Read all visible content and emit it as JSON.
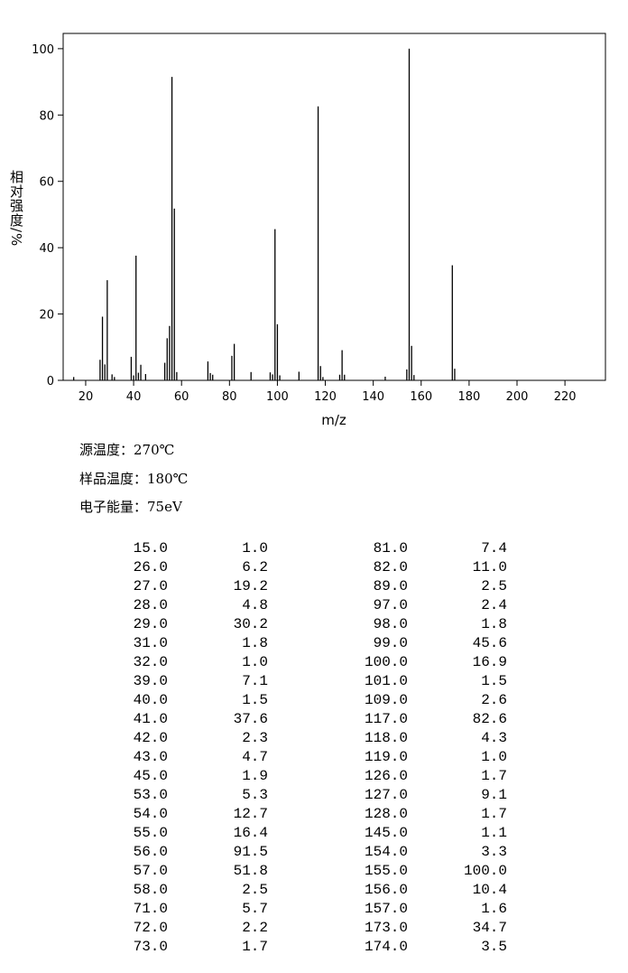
{
  "chart_data": {
    "type": "bar",
    "xlabel": "m/z",
    "ylabel": "相对强度/%",
    "x": [
      15,
      26,
      27,
      28,
      29,
      31,
      32,
      39,
      40,
      41,
      42,
      43,
      45,
      53,
      54,
      55,
      56,
      57,
      58,
      71,
      72,
      73,
      81,
      82,
      89,
      97,
      98,
      99,
      100,
      101,
      109,
      117,
      118,
      119,
      126,
      127,
      128,
      145,
      154,
      155,
      156,
      157,
      173,
      174
    ],
    "values": [
      1.0,
      6.2,
      19.2,
      4.8,
      30.2,
      1.8,
      1.0,
      7.1,
      1.5,
      37.6,
      2.3,
      4.7,
      1.9,
      5.3,
      12.7,
      16.4,
      91.5,
      51.8,
      2.5,
      5.7,
      2.2,
      1.7,
      7.4,
      11.0,
      2.5,
      2.4,
      1.8,
      45.6,
      16.9,
      1.5,
      2.6,
      82.6,
      4.3,
      1.0,
      1.7,
      9.1,
      1.7,
      1.1,
      3.3,
      100,
      10.4,
      1.6,
      34.7,
      3.5
    ],
    "color": "#000000",
    "xlim": [
      10.6,
      236.9
    ],
    "xticks": [
      20,
      40,
      60,
      80,
      100,
      120,
      140,
      160,
      180,
      200,
      220
    ],
    "ylim": [
      0,
      104.6
    ],
    "yticks": [
      0,
      20,
      40,
      60,
      80,
      100
    ]
  },
  "conditions": [
    "源温度：270℃",
    "样品温度：180℃",
    "电子能量：75eV"
  ],
  "table": {
    "rows": [
      [
        "15.0",
        "1.0",
        "81.0",
        "7.4"
      ],
      [
        "26.0",
        "6.2",
        "82.0",
        "11.0"
      ],
      [
        "27.0",
        "19.2",
        "89.0",
        "2.5"
      ],
      [
        "28.0",
        "4.8",
        "97.0",
        "2.4"
      ],
      [
        "29.0",
        "30.2",
        "98.0",
        "1.8"
      ],
      [
        "31.0",
        "1.8",
        "99.0",
        "45.6"
      ],
      [
        "32.0",
        "1.0",
        "100.0",
        "16.9"
      ],
      [
        "39.0",
        "7.1",
        "101.0",
        "1.5"
      ],
      [
        "40.0",
        "1.5",
        "109.0",
        "2.6"
      ],
      [
        "41.0",
        "37.6",
        "117.0",
        "82.6"
      ],
      [
        "42.0",
        "2.3",
        "118.0",
        "4.3"
      ],
      [
        "43.0",
        "4.7",
        "119.0",
        "1.0"
      ],
      [
        "45.0",
        "1.9",
        "126.0",
        "1.7"
      ],
      [
        "53.0",
        "5.3",
        "127.0",
        "9.1"
      ],
      [
        "54.0",
        "12.7",
        "128.0",
        "1.7"
      ],
      [
        "55.0",
        "16.4",
        "145.0",
        "1.1"
      ],
      [
        "56.0",
        "91.5",
        "154.0",
        "3.3"
      ],
      [
        "57.0",
        "51.8",
        "155.0",
        "100.0"
      ],
      [
        "58.0",
        "2.5",
        "156.0",
        "10.4"
      ],
      [
        "71.0",
        "5.7",
        "157.0",
        "1.6"
      ],
      [
        "72.0",
        "2.2",
        "173.0",
        "34.7"
      ],
      [
        "73.0",
        "1.7",
        "174.0",
        "3.5"
      ]
    ]
  }
}
